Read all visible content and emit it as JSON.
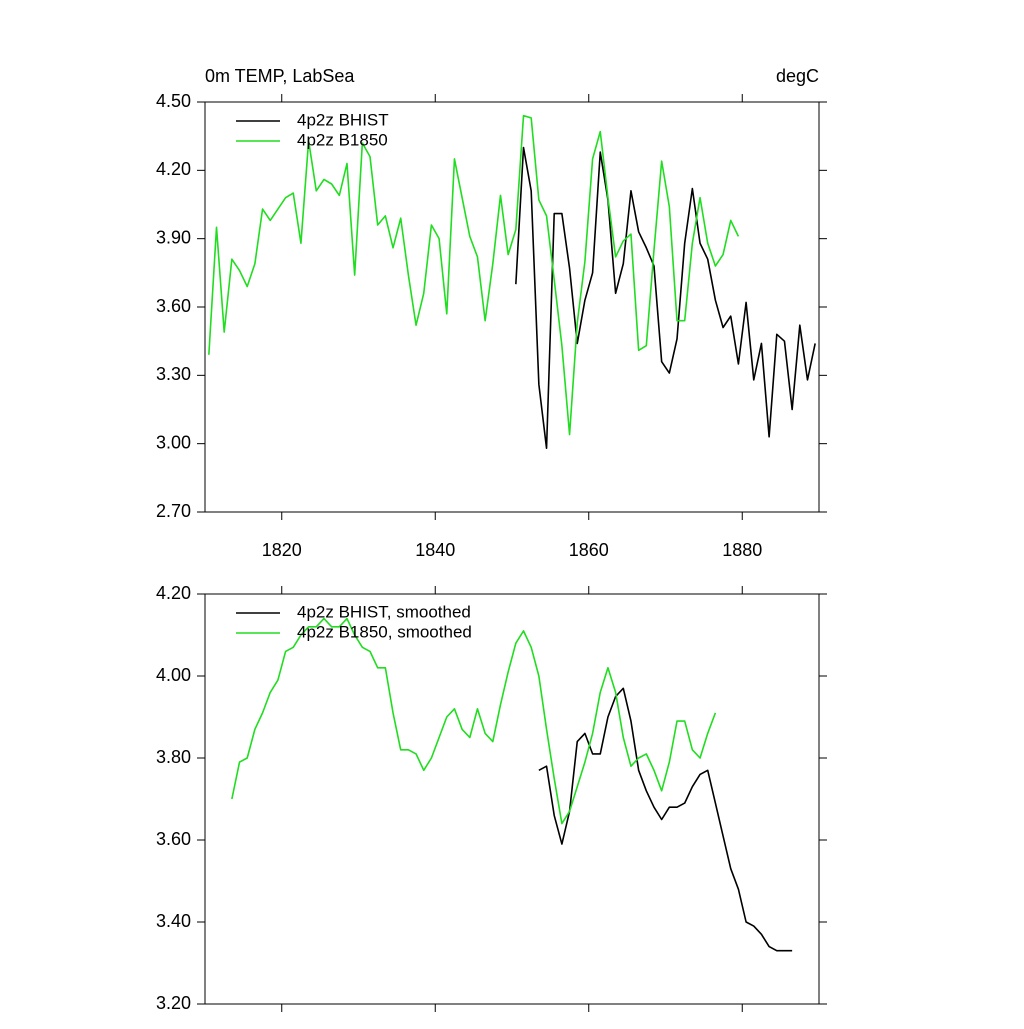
{
  "chart_data": [
    {
      "type": "line",
      "title": "0m TEMP, LabSea",
      "units": "degC",
      "legend": "top-left",
      "grid": false,
      "xlim": [
        1810,
        1890
      ],
      "xticks": [
        1820,
        1840,
        1860,
        1880
      ],
      "ylim": [
        2.7,
        4.5
      ],
      "yticks": [
        {
          "value": 2.7,
          "label": "2.70"
        },
        {
          "value": 3.0,
          "label": "3.00"
        },
        {
          "value": 3.3,
          "label": "3.30"
        },
        {
          "value": 3.6,
          "label": "3.60"
        },
        {
          "value": 3.9,
          "label": "3.90"
        },
        {
          "value": 4.2,
          "label": "4.20"
        },
        {
          "value": 4.5,
          "label": "4.50"
        }
      ],
      "series": [
        {
          "name": "4p2z BHIST",
          "color": "#000000",
          "x": [
            1850.5,
            1851.5,
            1852.5,
            1853.5,
            1854.5,
            1855.5,
            1856.5,
            1857.5,
            1858.5,
            1859.5,
            1860.5,
            1861.5,
            1862.5,
            1863.5,
            1864.5,
            1865.5,
            1866.5,
            1867.5,
            1868.5,
            1869.5,
            1870.5,
            1871.5,
            1872.5,
            1873.5,
            1874.5,
            1875.5,
            1876.5,
            1877.5,
            1878.5,
            1879.5,
            1880.5,
            1881.5,
            1882.5,
            1883.5,
            1884.5,
            1885.5,
            1886.5,
            1887.5,
            1888.5,
            1889.5
          ],
          "values": [
            3.7,
            4.3,
            4.11,
            3.26,
            2.98,
            4.01,
            4.01,
            3.77,
            3.44,
            3.63,
            3.75,
            4.28,
            4.07,
            3.66,
            3.79,
            4.11,
            3.93,
            3.86,
            3.78,
            3.36,
            3.31,
            3.46,
            3.88,
            4.12,
            3.88,
            3.81,
            3.63,
            3.51,
            3.56,
            3.35,
            3.62,
            3.28,
            3.44,
            3.03,
            3.48,
            3.45,
            3.15,
            3.52,
            3.28,
            3.44
          ]
        },
        {
          "name": "4p2z B1850",
          "color": "#20dd20",
          "x": [
            1810.5,
            1811.5,
            1812.5,
            1813.5,
            1814.5,
            1815.5,
            1816.5,
            1817.5,
            1818.5,
            1819.5,
            1820.5,
            1821.5,
            1822.5,
            1823.5,
            1824.5,
            1825.5,
            1826.5,
            1827.5,
            1828.5,
            1829.5,
            1830.5,
            1831.5,
            1832.5,
            1833.5,
            1834.5,
            1835.5,
            1836.5,
            1837.5,
            1838.5,
            1839.5,
            1840.5,
            1841.5,
            1842.5,
            1843.5,
            1844.5,
            1845.5,
            1846.5,
            1847.5,
            1848.5,
            1849.5,
            1850.5,
            1851.5,
            1852.5,
            1853.5,
            1854.5,
            1855.5,
            1856.5,
            1857.5,
            1858.5,
            1859.5,
            1860.5,
            1861.5,
            1862.5,
            1863.5,
            1864.5,
            1865.5,
            1866.5,
            1867.5,
            1868.5,
            1869.5,
            1870.5,
            1871.5,
            1872.5,
            1873.5,
            1874.5,
            1875.5,
            1876.5,
            1877.5,
            1878.5,
            1879.5
          ],
          "values": [
            3.39,
            3.95,
            3.49,
            3.81,
            3.76,
            3.69,
            3.79,
            4.03,
            3.98,
            4.03,
            4.08,
            4.1,
            3.88,
            4.33,
            4.11,
            4.16,
            4.14,
            4.09,
            4.23,
            3.74,
            4.32,
            4.26,
            3.96,
            4.0,
            3.86,
            3.99,
            3.74,
            3.52,
            3.66,
            3.96,
            3.9,
            3.57,
            4.25,
            4.08,
            3.91,
            3.82,
            3.54,
            3.79,
            4.09,
            3.83,
            3.94,
            4.44,
            4.43,
            4.07,
            4.0,
            3.72,
            3.43,
            3.04,
            3.53,
            3.8,
            4.25,
            4.37,
            4.08,
            3.82,
            3.89,
            3.92,
            3.41,
            3.43,
            3.85,
            4.24,
            4.04,
            3.54,
            3.54,
            3.88,
            4.08,
            3.88,
            3.78,
            3.83,
            3.98,
            3.91
          ]
        }
      ]
    },
    {
      "type": "line",
      "legend": "top-left",
      "grid": false,
      "xlim": [
        1810,
        1890
      ],
      "xticks": [
        1820,
        1840,
        1860,
        1880
      ],
      "ylim": [
        3.2,
        4.2
      ],
      "yticks": [
        {
          "value": 3.2,
          "label": "3.20"
        },
        {
          "value": 3.4,
          "label": "3.40"
        },
        {
          "value": 3.6,
          "label": "3.60"
        },
        {
          "value": 3.8,
          "label": "3.80"
        },
        {
          "value": 4.0,
          "label": "4.00"
        },
        {
          "value": 4.2,
          "label": "4.20"
        }
      ],
      "series": [
        {
          "name": "4p2z BHIST, smoothed",
          "color": "#000000",
          "x": [
            1853.5,
            1854.5,
            1855.5,
            1856.5,
            1857.5,
            1858.5,
            1859.5,
            1860.5,
            1861.5,
            1862.5,
            1863.5,
            1864.5,
            1865.5,
            1866.5,
            1867.5,
            1868.5,
            1869.5,
            1870.5,
            1871.5,
            1872.5,
            1873.5,
            1874.5,
            1875.5,
            1876.5,
            1877.5,
            1878.5,
            1879.5,
            1880.5,
            1881.5,
            1882.5,
            1883.5,
            1884.5,
            1885.5,
            1886.5
          ],
          "values": [
            3.77,
            3.78,
            3.66,
            3.59,
            3.67,
            3.84,
            3.86,
            3.81,
            3.81,
            3.9,
            3.95,
            3.97,
            3.89,
            3.77,
            3.72,
            3.68,
            3.65,
            3.68,
            3.68,
            3.69,
            3.73,
            3.76,
            3.77,
            3.69,
            3.61,
            3.53,
            3.48,
            3.4,
            3.39,
            3.37,
            3.34,
            3.33,
            3.33,
            3.33
          ]
        },
        {
          "name": "4p2z B1850, smoothed",
          "color": "#20dd20",
          "x": [
            1813.5,
            1814.5,
            1815.5,
            1816.5,
            1817.5,
            1818.5,
            1819.5,
            1820.5,
            1821.5,
            1822.5,
            1823.5,
            1824.5,
            1825.5,
            1826.5,
            1827.5,
            1828.5,
            1829.5,
            1830.5,
            1831.5,
            1832.5,
            1833.5,
            1834.5,
            1835.5,
            1836.5,
            1837.5,
            1838.5,
            1839.5,
            1840.5,
            1841.5,
            1842.5,
            1843.5,
            1844.5,
            1845.5,
            1846.5,
            1847.5,
            1848.5,
            1849.5,
            1850.5,
            1851.5,
            1852.5,
            1853.5,
            1854.5,
            1855.5,
            1856.5,
            1857.5,
            1858.5,
            1859.5,
            1860.5,
            1861.5,
            1862.5,
            1863.5,
            1864.5,
            1865.5,
            1866.5,
            1867.5,
            1868.5,
            1869.5,
            1870.5,
            1871.5,
            1872.5,
            1873.5,
            1874.5,
            1875.5,
            1876.5
          ],
          "values": [
            3.7,
            3.79,
            3.8,
            3.87,
            3.91,
            3.96,
            3.99,
            4.06,
            4.07,
            4.1,
            4.12,
            4.12,
            4.14,
            4.12,
            4.12,
            4.14,
            4.1,
            4.07,
            4.06,
            4.02,
            4.02,
            3.91,
            3.82,
            3.82,
            3.81,
            3.77,
            3.8,
            3.85,
            3.9,
            3.92,
            3.87,
            3.85,
            3.92,
            3.86,
            3.84,
            3.93,
            4.01,
            4.08,
            4.11,
            4.07,
            4.0,
            3.87,
            3.75,
            3.64,
            3.67,
            3.73,
            3.79,
            3.86,
            3.96,
            4.02,
            3.96,
            3.85,
            3.78,
            3.8,
            3.81,
            3.77,
            3.72,
            3.79,
            3.89,
            3.89,
            3.82,
            3.8,
            3.86,
            3.91
          ]
        }
      ]
    }
  ]
}
